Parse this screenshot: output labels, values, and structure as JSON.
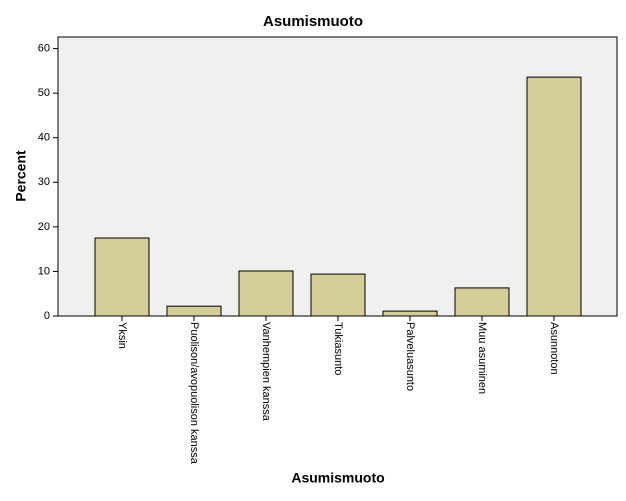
{
  "chart_data": {
    "type": "bar",
    "title": "Asumismuoto",
    "x_label": "Asumismuoto",
    "y_label": "Percent",
    "categories": [
      "Yksin",
      "Puolison/avopuolison kanssa",
      "Vanhempien kanssa",
      "Tukiasunto",
      "Palveluasunto",
      "Muu asuminen",
      "Asunnoton"
    ],
    "values": [
      17.5,
      2.2,
      10.1,
      9.4,
      1.1,
      6.3,
      53.6
    ],
    "color": "#d3ce98",
    "ylim": [
      0,
      62.6
    ],
    "yticks": [
      0,
      10,
      20,
      30,
      40,
      50,
      60
    ],
    "grid": false
  }
}
